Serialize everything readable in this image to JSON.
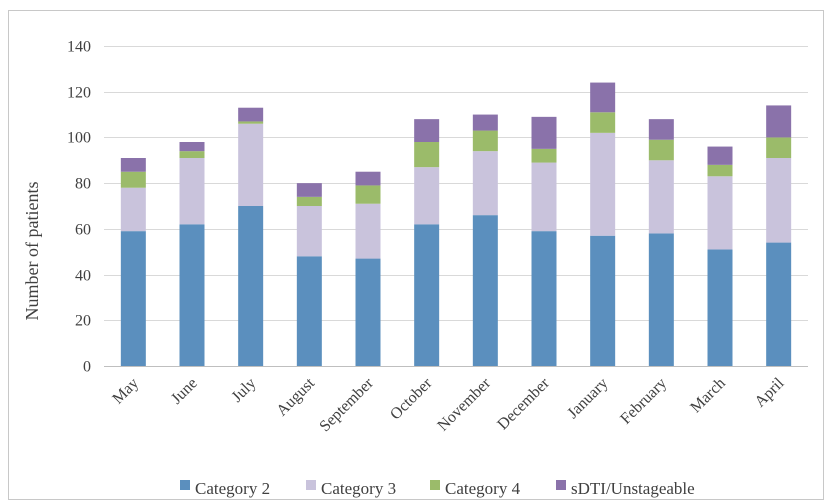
{
  "chart_data": {
    "type": "bar",
    "stacked": true,
    "title": "",
    "xlabel": "",
    "ylabel": "Number of patients",
    "ylim": [
      0,
      140
    ],
    "yticks": [
      0,
      20,
      40,
      60,
      80,
      100,
      120,
      140
    ],
    "grid": true,
    "legend_position": "bottom",
    "categories": [
      "May",
      "June",
      "July",
      "August",
      "September",
      "October",
      "November",
      "December",
      "January",
      "February",
      "March",
      "April"
    ],
    "series": [
      {
        "name": "Category 2",
        "color": "#5b8fbe",
        "values": [
          59,
          62,
          70,
          48,
          47,
          62,
          66,
          59,
          57,
          58,
          51,
          54
        ]
      },
      {
        "name": "Category 3",
        "color": "#c9c3dc",
        "values": [
          19,
          29,
          36,
          22,
          24,
          25,
          28,
          30,
          45,
          32,
          32,
          37
        ]
      },
      {
        "name": "Category 4",
        "color": "#9bbb6a",
        "values": [
          7,
          3,
          1,
          4,
          8,
          11,
          9,
          6,
          9,
          9,
          5,
          9
        ]
      },
      {
        "name": "sDTI/Unstageable",
        "color": "#8a72aa",
        "values": [
          6,
          4,
          6,
          6,
          6,
          10,
          7,
          14,
          13,
          9,
          8,
          14
        ]
      }
    ]
  }
}
